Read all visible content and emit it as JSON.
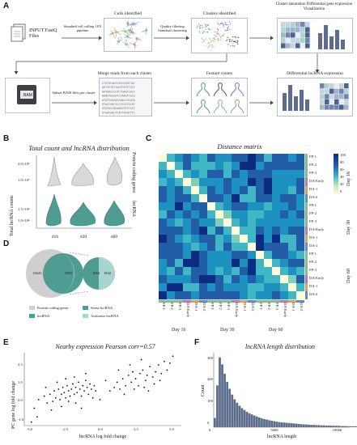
{
  "panel_labels": {
    "a": "A",
    "b": "B",
    "c": "C",
    "d": "D",
    "e": "E",
    "f": "F"
  },
  "workflow": {
    "input": "INPUT FastQ Files",
    "step1": "Standard cell calling 10X pipeline",
    "cells": "Cells identified",
    "step2": "Quality filtering Standard clustering",
    "clusters": "Clusters identified",
    "annotation": "Cluster annotation Differential gene expression Visualization",
    "bam": "BAM",
    "subset": "Subset BAM files per cluster",
    "merge": "Merge reads from each cluster",
    "features": "Feature counts",
    "diff_lnc": "Differential lncRNA expression"
  },
  "colors": {
    "teal": "#4f9c92",
    "grey": "#cfcfcf",
    "lightteal": "#a8d5cf",
    "heat_low": "#ffffd9",
    "heat_high": "#0c2c84"
  },
  "panel_b": {
    "title": "Total count and lncRNA distribution",
    "ylabel": "Total lncRNA counts",
    "right_top": "Protein coding genes",
    "right_bottom": "lncRNA",
    "ticks_top": [
      "2.0×10⁵",
      "1.0×10⁵"
    ],
    "ticks_bottom": [
      "1.5×10⁴",
      "1.0×10⁴"
    ],
    "xcats": [
      "d16",
      "d30",
      "d60"
    ]
  },
  "panel_c": {
    "title": "Distance matrix",
    "rows": [
      "FP-1",
      "FP-2",
      "FP-3",
      "DA-Early",
      "DA-1",
      "DA-2",
      "FP-1",
      "FP-2",
      "FP-3",
      "DA-Early",
      "DA-1",
      "DA-2",
      "FP-1",
      "FP-2",
      "FP-3",
      "DA-Early",
      "DA-1",
      "DA-2"
    ],
    "day_labels": [
      "Day 16",
      "Day 30",
      "Day 60"
    ],
    "colorbar_ticks": [
      "100",
      "80",
      "60",
      "40",
      "20",
      "0"
    ]
  },
  "panel_d": {
    "protein_only": "14643",
    "overlap": "5803",
    "lnc_only": "1842",
    "lnc_overlap": "1863",
    "legend": [
      "Protein coding genes",
      "Sense lncRNA",
      "lncRNA",
      "Antisense lncRNA"
    ]
  },
  "panel_e": {
    "title": "Nearby expression Pearson corr=0.57",
    "xlabel": "lncRNA log fold change",
    "ylabel": "PC gene log fold change",
    "xticks": [
      "-5.0",
      "-2.5",
      "0.0",
      "2.5",
      "5.0"
    ],
    "yticks": [
      "2.5",
      "1.0",
      "0.0",
      "-1.0"
    ]
  },
  "panel_f": {
    "title": "lncRNA length distribution",
    "xlabel": "lncRNA length",
    "ylabel": "Count",
    "xticks": [
      "0",
      "5000",
      "10000"
    ],
    "yticks": [
      "300",
      "200",
      "100",
      "0"
    ]
  },
  "chart_data": [
    {
      "type": "scatter",
      "title": "Nearby expression Pearson corr=0.57",
      "xlabel": "lncRNA log fold change",
      "ylabel": "PC gene log fold change",
      "xlim": [
        -5.5,
        5.5
      ],
      "ylim": [
        -1.2,
        3.0
      ],
      "points": [
        [
          -4.8,
          -0.2
        ],
        [
          -4.5,
          0.3
        ],
        [
          -4.1,
          0.5
        ],
        [
          -3.9,
          0.1
        ],
        [
          -3.7,
          0.6
        ],
        [
          -3.5,
          0.2
        ],
        [
          -3.4,
          0.8
        ],
        [
          -3.3,
          0.4
        ],
        [
          -3.1,
          0.9
        ],
        [
          -3.0,
          0.3
        ],
        [
          -2.9,
          0.6
        ],
        [
          -2.8,
          1.0
        ],
        [
          -2.7,
          0.7
        ],
        [
          -2.6,
          0.4
        ],
        [
          -2.5,
          1.1
        ],
        [
          -2.4,
          0.8
        ],
        [
          -2.3,
          0.5
        ],
        [
          -2.2,
          0.9
        ],
        [
          -2.1,
          1.2
        ],
        [
          -2.0,
          0.6
        ],
        [
          -1.9,
          1.0
        ],
        [
          -1.8,
          0.7
        ],
        [
          -1.7,
          1.3
        ],
        [
          -1.6,
          0.9
        ],
        [
          -1.5,
          0.5
        ],
        [
          -1.4,
          1.1
        ],
        [
          -1.3,
          0.8
        ],
        [
          -1.2,
          1.4
        ],
        [
          -1.1,
          1.0
        ],
        [
          -1.0,
          0.6
        ],
        [
          -0.9,
          1.2
        ],
        [
          -0.8,
          0.9
        ],
        [
          -0.7,
          0.4
        ],
        [
          -0.6,
          1.1
        ],
        [
          -0.5,
          0.8
        ],
        [
          -3.6,
          -0.3
        ],
        [
          -2.9,
          -0.1
        ],
        [
          -2.4,
          0.2
        ],
        [
          -1.9,
          0.1
        ],
        [
          -1.5,
          -0.2
        ],
        [
          -4.0,
          1.0
        ],
        [
          -3.2,
          1.3
        ],
        [
          -2.6,
          1.5
        ],
        [
          -2.0,
          1.6
        ],
        [
          -1.2,
          1.8
        ],
        [
          0.5,
          0.8
        ],
        [
          0.8,
          1.0
        ],
        [
          1.0,
          1.3
        ],
        [
          1.2,
          0.9
        ],
        [
          1.4,
          1.5
        ],
        [
          1.6,
          1.1
        ],
        [
          1.8,
          1.7
        ],
        [
          2.0,
          1.3
        ],
        [
          2.1,
          1.9
        ],
        [
          2.3,
          1.5
        ],
        [
          2.5,
          1.1
        ],
        [
          2.6,
          1.8
        ],
        [
          2.8,
          2.0
        ],
        [
          3.0,
          1.4
        ],
        [
          3.1,
          1.7
        ],
        [
          3.3,
          2.2
        ],
        [
          3.5,
          1.6
        ],
        [
          3.7,
          1.9
        ],
        [
          3.9,
          2.3
        ],
        [
          4.1,
          1.8
        ],
        [
          4.3,
          2.5
        ],
        [
          4.5,
          2.0
        ],
        [
          4.7,
          2.4
        ],
        [
          1.5,
          0.6
        ],
        [
          2.2,
          0.9
        ],
        [
          2.9,
          1.0
        ],
        [
          3.6,
          1.2
        ],
        [
          1.1,
          2.0
        ],
        [
          1.9,
          2.3
        ],
        [
          2.7,
          2.6
        ],
        [
          4.9,
          2.8
        ],
        [
          -5.0,
          -1.0
        ],
        [
          -4.6,
          -0.7
        ],
        [
          0.2,
          1.4
        ],
        [
          -0.2,
          0.3
        ],
        [
          3.2,
          0.8
        ],
        [
          4.0,
          1.4
        ]
      ]
    },
    {
      "type": "bar",
      "title": "lncRNA length distribution",
      "xlabel": "lncRNA length",
      "ylabel": "Count",
      "xlim": [
        0,
        11000
      ],
      "ylim": [
        0,
        320
      ],
      "bin_width": 200,
      "values": [
        40,
        180,
        300,
        270,
        230,
        195,
        165,
        140,
        120,
        105,
        92,
        82,
        74,
        66,
        60,
        55,
        50,
        46,
        42,
        38,
        35,
        33,
        30,
        28,
        26,
        24,
        22,
        21,
        20,
        19,
        18,
        17,
        16,
        15,
        14,
        13,
        12,
        12,
        11,
        10,
        10,
        9,
        9,
        8,
        8,
        7,
        7,
        7,
        6,
        6,
        6,
        5,
        5,
        5,
        4,
        4,
        4,
        4,
        3,
        3,
        3,
        3,
        3,
        2,
        2
      ]
    }
  ]
}
